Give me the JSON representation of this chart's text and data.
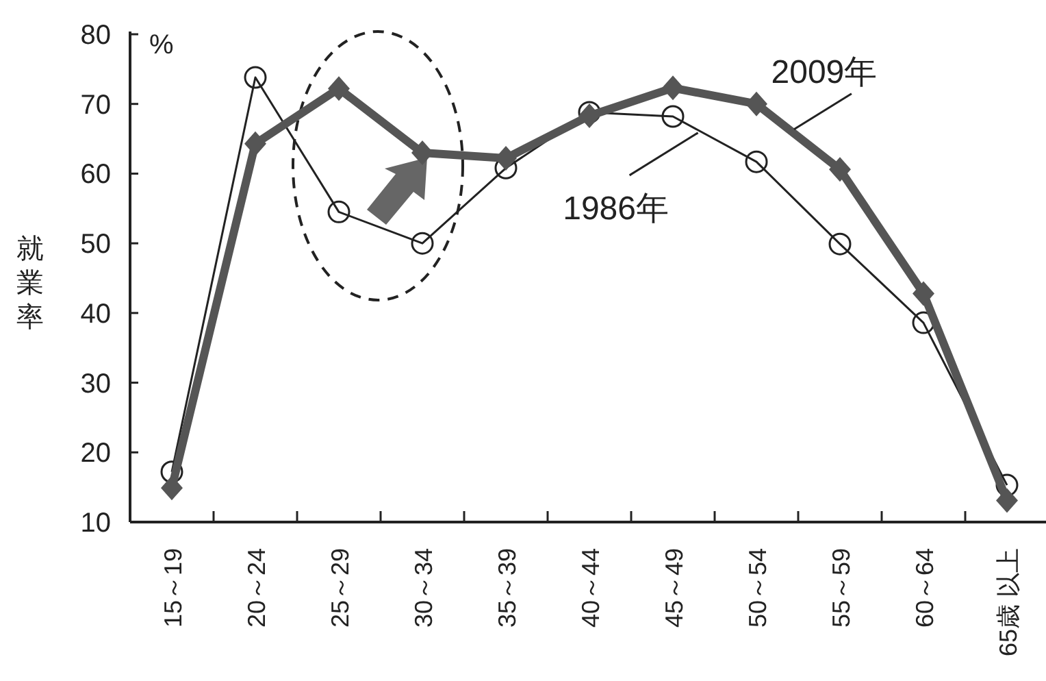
{
  "chart_data": {
    "type": "line",
    "ylabel": "就業率",
    "annotations": [
      "%"
    ],
    "categories": [
      "15～19",
      "20～24",
      "25～29",
      "30～34",
      "35～39",
      "40～44",
      "45～49",
      "50～54",
      "55～59",
      "60～64",
      "65歳 以上"
    ],
    "ylim": [
      10,
      80
    ],
    "yticks": [
      10,
      20,
      30,
      40,
      50,
      60,
      70,
      80
    ],
    "grid": false,
    "series": [
      {
        "name": "1986年",
        "color": "#222222",
        "marker": "circle",
        "values": [
          17.2,
          73.8,
          54.5,
          50.0,
          60.8,
          68.8,
          68.2,
          61.7,
          49.9,
          38.6,
          15.3
        ]
      },
      {
        "name": "2009年",
        "color": "#555555",
        "marker": "diamond",
        "values": [
          14.9,
          64.3,
          72.2,
          63.0,
          62.2,
          68.3,
          72.3,
          70.0,
          60.6,
          42.8,
          13.1
        ]
      }
    ]
  }
}
